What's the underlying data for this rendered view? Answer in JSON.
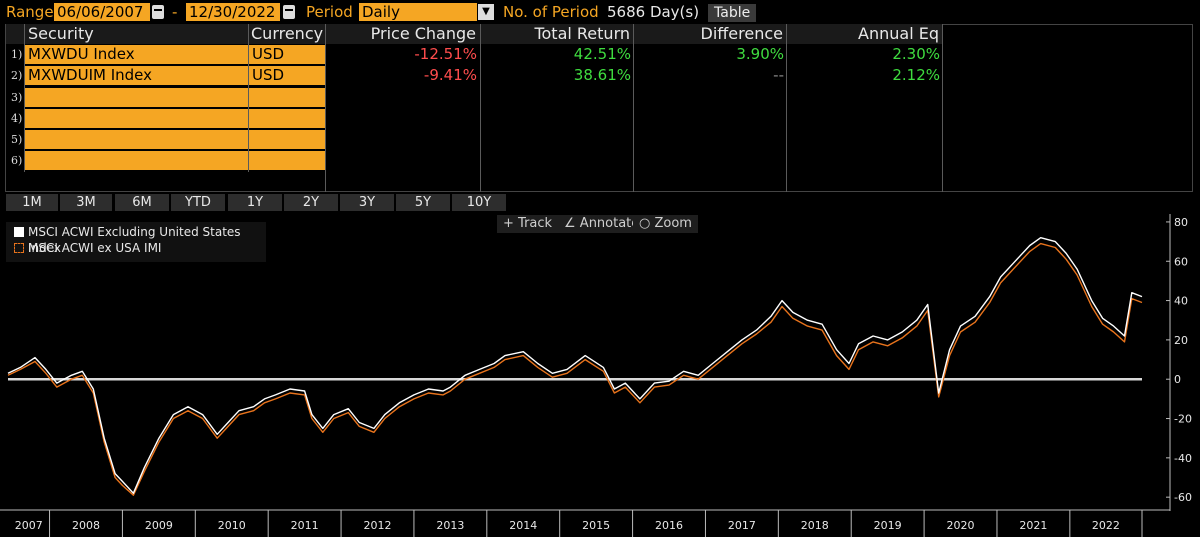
{
  "header": {
    "range_label": "Range",
    "start_date": "06/06/2007",
    "dash": "-",
    "end_date": "12/30/2022",
    "period_label": "Period",
    "period_value": "Daily",
    "num_period_label": "No. of Period",
    "num_period_value": "5686 Day(s)",
    "table_button": "Table"
  },
  "table": {
    "headers": [
      "Security",
      "Currency",
      "Price Change",
      "Total Return",
      "Difference",
      "Annual Eq"
    ],
    "row_numbers": [
      "1)",
      "2)",
      "3)",
      "4)",
      "5)",
      "6)"
    ],
    "rows": [
      {
        "security": "MXWDU Index",
        "currency": "USD",
        "price_change": "-12.51%",
        "total_return": "42.51%",
        "difference": "3.90%",
        "annual_eq": "2.30%"
      },
      {
        "security": "MXWDUIM Index",
        "currency": "USD",
        "price_change": "-9.41%",
        "total_return": "38.61%",
        "difference": "--",
        "annual_eq": "2.12%"
      }
    ]
  },
  "period_buttons": [
    "1M",
    "3M",
    "6M",
    "YTD",
    "1Y",
    "2Y",
    "3Y",
    "5Y",
    "10Y"
  ],
  "tools": {
    "track": "Track",
    "annotate": "Annotate",
    "zoom": "Zoom"
  },
  "colors": {
    "accent": "#f5a623",
    "negative": "#ff4d4d",
    "positive": "#3fdc3f",
    "series1": "#ffffff",
    "series2": "#e8731c"
  },
  "chart_data": {
    "type": "line",
    "legend_position": "top-left",
    "grid": false,
    "ylim": [
      -65,
      82
    ],
    "xlim": [
      2007.43,
      2022.99
    ],
    "y_ticks": [
      80,
      60,
      40,
      20,
      0,
      -20,
      -40,
      -60
    ],
    "x_ticks": [
      "2007",
      "2008",
      "2009",
      "2010",
      "2011",
      "2012",
      "2013",
      "2014",
      "2015",
      "2016",
      "2017",
      "2018",
      "2019",
      "2020",
      "2021",
      "2022"
    ],
    "reference_line": 0,
    "series": [
      {
        "name": "MSCI ACWI Excluding United States Index",
        "color": "#ffffff",
        "x": [
          2007.43,
          2007.6,
          2007.8,
          2007.95,
          2008.1,
          2008.3,
          2008.45,
          2008.6,
          2008.75,
          2008.9,
          2009.0,
          2009.15,
          2009.3,
          2009.5,
          2009.7,
          2009.9,
          2010.1,
          2010.3,
          2010.45,
          2010.6,
          2010.8,
          2010.95,
          2011.1,
          2011.3,
          2011.5,
          2011.6,
          2011.75,
          2011.9,
          2012.1,
          2012.25,
          2012.45,
          2012.6,
          2012.8,
          2013.0,
          2013.2,
          2013.4,
          2013.5,
          2013.7,
          2013.9,
          2014.1,
          2014.25,
          2014.5,
          2014.7,
          2014.9,
          2015.1,
          2015.35,
          2015.6,
          2015.75,
          2015.9,
          2016.1,
          2016.3,
          2016.5,
          2016.7,
          2016.9,
          2017.1,
          2017.3,
          2017.5,
          2017.7,
          2017.9,
          2018.05,
          2018.2,
          2018.4,
          2018.6,
          2018.8,
          2018.97,
          2019.1,
          2019.3,
          2019.5,
          2019.7,
          2019.9,
          2020.05,
          2020.2,
          2020.35,
          2020.5,
          2020.7,
          2020.9,
          2021.05,
          2021.3,
          2021.45,
          2021.6,
          2021.8,
          2021.95,
          2022.1,
          2022.3,
          2022.45,
          2022.6,
          2022.75,
          2022.85,
          2022.99
        ],
        "values": [
          3,
          6,
          11,
          5,
          -2,
          2,
          4,
          -5,
          -30,
          -48,
          -52,
          -58,
          -45,
          -30,
          -18,
          -14,
          -18,
          -28,
          -22,
          -16,
          -14,
          -10,
          -8,
          -5,
          -6,
          -18,
          -25,
          -18,
          -15,
          -22,
          -25,
          -18,
          -12,
          -8,
          -5,
          -6,
          -4,
          2,
          5,
          8,
          12,
          14,
          8,
          3,
          5,
          12,
          6,
          -5,
          -2,
          -10,
          -2,
          -1,
          4,
          2,
          8,
          14,
          20,
          25,
          32,
          40,
          34,
          30,
          28,
          15,
          8,
          18,
          22,
          20,
          24,
          30,
          38,
          -7,
          15,
          27,
          32,
          42,
          52,
          62,
          68,
          72,
          70,
          64,
          56,
          40,
          31,
          27,
          22,
          44,
          42
        ]
      },
      {
        "name": "MSCI ACWI ex USA IMI",
        "color": "#e8731c",
        "x": [
          2007.43,
          2007.6,
          2007.8,
          2007.95,
          2008.1,
          2008.3,
          2008.45,
          2008.6,
          2008.75,
          2008.9,
          2009.0,
          2009.15,
          2009.3,
          2009.5,
          2009.7,
          2009.9,
          2010.1,
          2010.3,
          2010.45,
          2010.6,
          2010.8,
          2010.95,
          2011.1,
          2011.3,
          2011.5,
          2011.6,
          2011.75,
          2011.9,
          2012.1,
          2012.25,
          2012.45,
          2012.6,
          2012.8,
          2013.0,
          2013.2,
          2013.4,
          2013.5,
          2013.7,
          2013.9,
          2014.1,
          2014.25,
          2014.5,
          2014.7,
          2014.9,
          2015.1,
          2015.35,
          2015.6,
          2015.75,
          2015.9,
          2016.1,
          2016.3,
          2016.5,
          2016.7,
          2016.9,
          2017.1,
          2017.3,
          2017.5,
          2017.7,
          2017.9,
          2018.05,
          2018.2,
          2018.4,
          2018.6,
          2018.8,
          2018.97,
          2019.1,
          2019.3,
          2019.5,
          2019.7,
          2019.9,
          2020.05,
          2020.2,
          2020.35,
          2020.5,
          2020.7,
          2020.9,
          2021.05,
          2021.3,
          2021.45,
          2021.6,
          2021.8,
          2021.95,
          2022.1,
          2022.3,
          2022.45,
          2022.6,
          2022.75,
          2022.85,
          2022.99
        ],
        "values": [
          2,
          5,
          9,
          3,
          -4,
          0,
          2,
          -7,
          -32,
          -50,
          -54,
          -59,
          -47,
          -32,
          -20,
          -16,
          -20,
          -30,
          -24,
          -18,
          -16,
          -12,
          -10,
          -7,
          -8,
          -20,
          -27,
          -20,
          -17,
          -24,
          -27,
          -20,
          -14,
          -10,
          -7,
          -8,
          -6,
          0,
          3,
          6,
          10,
          12,
          6,
          1,
          3,
          10,
          4,
          -7,
          -4,
          -12,
          -4,
          -3,
          2,
          0,
          6,
          12,
          18,
          23,
          29,
          37,
          31,
          27,
          25,
          12,
          5,
          15,
          19,
          17,
          21,
          27,
          35,
          -9,
          12,
          24,
          29,
          39,
          49,
          59,
          65,
          69,
          67,
          61,
          53,
          37,
          28,
          24,
          19,
          41,
          39
        ]
      }
    ]
  }
}
